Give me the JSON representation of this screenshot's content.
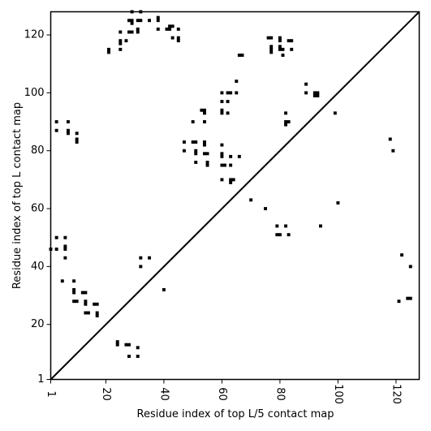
{
  "chart_data": {
    "type": "scatter",
    "title": "",
    "xlabel": "Residue index of top L/5 contact map",
    "ylabel": "Residue index of top L contact map",
    "xlim": [
      1,
      128
    ],
    "ylim": [
      1,
      128
    ],
    "x_ticks": [
      1,
      20,
      40,
      60,
      80,
      100,
      120
    ],
    "y_ticks": [
      1,
      20,
      40,
      60,
      80,
      100,
      120
    ],
    "x_tick_labels": [
      "1",
      "20",
      "40",
      "60",
      "80",
      "100",
      "120"
    ],
    "y_tick_labels": [
      "1",
      "20",
      "40",
      "60",
      "80",
      "100",
      "120"
    ],
    "x_tick_rotation": 90,
    "grid": false,
    "diagonal": true,
    "marker": "square",
    "marker_color": "#000000",
    "series": [
      {
        "points": [
          [
            21,
            115
          ],
          [
            21,
            114
          ],
          [
            25,
            121
          ],
          [
            25,
            118
          ],
          [
            25,
            117
          ],
          [
            25,
            115
          ],
          [
            27,
            118
          ],
          [
            28,
            125
          ],
          [
            28,
            121
          ],
          [
            29,
            128
          ],
          [
            29,
            125
          ],
          [
            29,
            124
          ],
          [
            29,
            121
          ],
          [
            31,
            125
          ],
          [
            31,
            122
          ],
          [
            31,
            121
          ],
          [
            32,
            128
          ],
          [
            32,
            125
          ],
          [
            35,
            125
          ],
          [
            38,
            126
          ],
          [
            38,
            125
          ],
          [
            38,
            122
          ],
          [
            41,
            122
          ],
          [
            42,
            123
          ],
          [
            42,
            122
          ],
          [
            43,
            119
          ],
          [
            43,
            123
          ],
          [
            45,
            122
          ],
          [
            45,
            119
          ],
          [
            45,
            118
          ],
          [
            66,
            113
          ],
          [
            67,
            113
          ],
          [
            65,
            104
          ],
          [
            65,
            100
          ],
          [
            60,
            100
          ],
          [
            62,
            100
          ],
          [
            63,
            100
          ],
          [
            60,
            97
          ],
          [
            62,
            97
          ],
          [
            60,
            94
          ],
          [
            62,
            93
          ],
          [
            60,
            93
          ],
          [
            50,
            90
          ],
          [
            54,
            90
          ],
          [
            47,
            83
          ],
          [
            51,
            83
          ],
          [
            50,
            83
          ],
          [
            54,
            83
          ],
          [
            54,
            82
          ],
          [
            60,
            82
          ],
          [
            47,
            80
          ],
          [
            51,
            80
          ],
          [
            54,
            79
          ],
          [
            55,
            79
          ],
          [
            60,
            79
          ],
          [
            51,
            79
          ],
          [
            60,
            78
          ],
          [
            63,
            78
          ],
          [
            66,
            78
          ],
          [
            55,
            76
          ],
          [
            51,
            76
          ],
          [
            55,
            75
          ],
          [
            60,
            75
          ],
          [
            61,
            75
          ],
          [
            63,
            75
          ],
          [
            53,
            94
          ],
          [
            54,
            94
          ],
          [
            54,
            93
          ],
          [
            60,
            70
          ],
          [
            63,
            70
          ],
          [
            64,
            70
          ],
          [
            63,
            69
          ],
          [
            76,
            119
          ],
          [
            77,
            119
          ],
          [
            80,
            119
          ],
          [
            80,
            118
          ],
          [
            77,
            116
          ],
          [
            80,
            116
          ],
          [
            77,
            115
          ],
          [
            80,
            115
          ],
          [
            81,
            115
          ],
          [
            84,
            115
          ],
          [
            83,
            118
          ],
          [
            84,
            118
          ],
          [
            77,
            114
          ],
          [
            81,
            113
          ],
          [
            89,
            103
          ],
          [
            89,
            100
          ],
          [
            92,
            100
          ],
          [
            93,
            100
          ],
          [
            92,
            99
          ],
          [
            93,
            99
          ],
          [
            82,
            93
          ],
          [
            82,
            90
          ],
          [
            83,
            90
          ],
          [
            82,
            89
          ],
          [
            99,
            93
          ],
          [
            70,
            63
          ],
          [
            75,
            60
          ],
          [
            79,
            54
          ],
          [
            82,
            54
          ],
          [
            79,
            51
          ],
          [
            80,
            51
          ],
          [
            83,
            51
          ],
          [
            94,
            54
          ],
          [
            100,
            62
          ],
          [
            118,
            84
          ],
          [
            119,
            80
          ],
          [
            1,
            46
          ],
          [
            3,
            50
          ],
          [
            3,
            46
          ],
          [
            6,
            50
          ],
          [
            6,
            47
          ],
          [
            6,
            46
          ],
          [
            6,
            43
          ],
          [
            5,
            35
          ],
          [
            3,
            90
          ],
          [
            3,
            87
          ],
          [
            7,
            90
          ],
          [
            7,
            87
          ],
          [
            7,
            86
          ],
          [
            10,
            86
          ],
          [
            10,
            84
          ],
          [
            10,
            83
          ],
          [
            9,
            35
          ],
          [
            9,
            32
          ],
          [
            9,
            31
          ],
          [
            12,
            31
          ],
          [
            13,
            31
          ],
          [
            9,
            28
          ],
          [
            10,
            28
          ],
          [
            13,
            28
          ],
          [
            13,
            27
          ],
          [
            13,
            24
          ],
          [
            14,
            24
          ],
          [
            16,
            27
          ],
          [
            17,
            27
          ],
          [
            17,
            24
          ],
          [
            17,
            23
          ],
          [
            24,
            14
          ],
          [
            24,
            13
          ],
          [
            27,
            13
          ],
          [
            28,
            13
          ],
          [
            28,
            9
          ],
          [
            31,
            12
          ],
          [
            31,
            9
          ],
          [
            32,
            43
          ],
          [
            32,
            40
          ],
          [
            35,
            43
          ],
          [
            40,
            32
          ],
          [
            122,
            44
          ],
          [
            125,
            40
          ],
          [
            121,
            28
          ],
          [
            124,
            29
          ],
          [
            125,
            29
          ]
        ]
      }
    ]
  }
}
